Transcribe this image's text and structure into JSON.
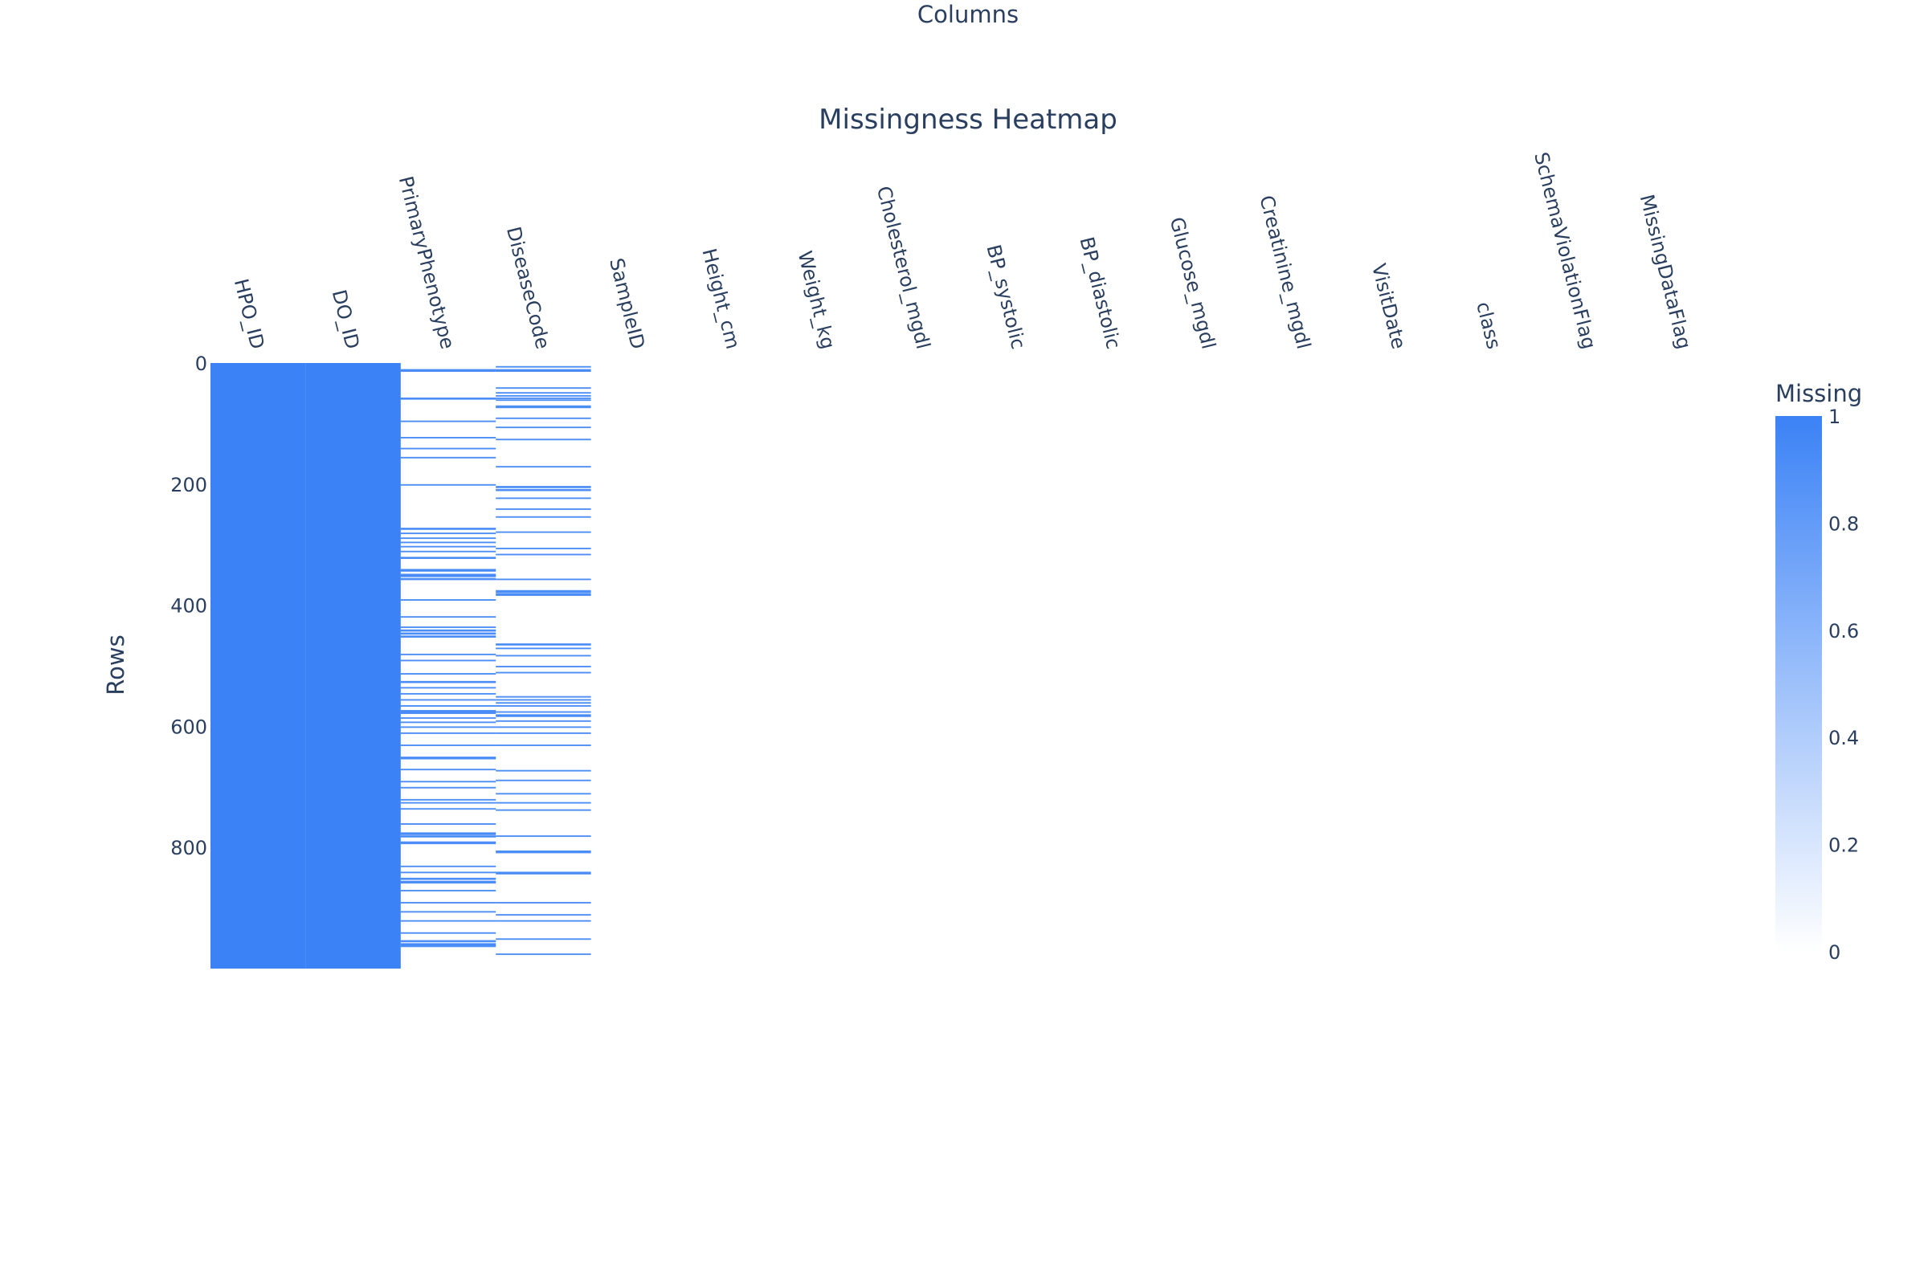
{
  "chart_data": {
    "type": "heatmap",
    "title": "Missingness Heatmap",
    "xlabel": "Columns",
    "ylabel": "Rows",
    "x_axis_side": "top",
    "columns": [
      "HPO_ID",
      "DO_ID",
      "PrimaryPhenotype",
      "DiseaseCode",
      "SampleID",
      "Height_cm",
      "Weight_kg",
      "Cholesterol_mgdl",
      "BP_systolic",
      "BP_diastolic",
      "Glucose_mgdl",
      "Creatinine_mgdl",
      "VisitDate",
      "class",
      "SchemaViolationFlag",
      "MissingDataFlag"
    ],
    "row_count": 1000,
    "y_ticks": [
      0,
      200,
      400,
      600,
      800
    ],
    "colorbar": {
      "title": "Missing",
      "ticks": [
        0,
        0.2,
        0.4,
        0.6,
        0.8,
        1
      ],
      "range": [
        0,
        1
      ],
      "colors": [
        "#ffffff",
        "#3b82f6"
      ],
      "legend_position": "right"
    },
    "missing_rows_by_column": {
      "HPO_ID": "all",
      "DO_ID": "all",
      "PrimaryPhenotype": [
        10,
        11,
        12,
        13,
        57,
        58,
        59,
        95,
        96,
        122,
        123,
        140,
        141,
        155,
        156,
        200,
        201,
        272,
        273,
        274,
        280,
        281,
        288,
        289,
        295,
        296,
        302,
        303,
        310,
        311,
        320,
        321,
        322,
        340,
        341,
        342,
        343,
        348,
        349,
        350,
        351,
        352,
        355,
        356,
        357,
        390,
        391,
        418,
        419,
        435,
        436,
        440,
        441,
        442,
        445,
        446,
        447,
        450,
        451,
        452,
        480,
        481,
        490,
        491,
        512,
        513,
        525,
        526,
        527,
        535,
        536,
        545,
        546,
        555,
        556,
        565,
        566,
        573,
        574,
        575,
        576,
        577,
        578,
        585,
        586,
        592,
        593,
        600,
        601,
        610,
        611,
        630,
        631,
        650,
        651,
        652,
        653,
        670,
        671,
        690,
        691,
        700,
        701,
        720,
        721,
        725,
        726,
        735,
        736,
        760,
        761,
        775,
        776,
        777,
        778,
        780,
        781,
        782,
        790,
        791,
        792,
        793,
        830,
        831,
        840,
        841,
        850,
        851,
        852,
        855,
        856,
        857,
        858,
        870,
        871,
        890,
        891,
        905,
        906,
        920,
        921,
        940,
        941,
        953,
        954,
        955,
        958,
        959,
        960,
        961,
        962,
        963
      ],
      "DiseaseCode": [
        5,
        6,
        10,
        11,
        12,
        13,
        40,
        41,
        48,
        49,
        53,
        54,
        57,
        58,
        60,
        61,
        70,
        71,
        72,
        73,
        90,
        91,
        105,
        106,
        125,
        126,
        170,
        171,
        203,
        204,
        205,
        208,
        209,
        210,
        222,
        223,
        240,
        241,
        253,
        254,
        278,
        279,
        305,
        306,
        315,
        316,
        356,
        357,
        375,
        376,
        377,
        378,
        380,
        381,
        382,
        383,
        463,
        464,
        465,
        470,
        471,
        482,
        483,
        500,
        501,
        510,
        511,
        550,
        551,
        555,
        556,
        560,
        561,
        565,
        566,
        575,
        576,
        580,
        581,
        582,
        583,
        590,
        591,
        600,
        601,
        610,
        611,
        630,
        631,
        672,
        673,
        688,
        689,
        710,
        711,
        725,
        726,
        737,
        738,
        780,
        781,
        805,
        806,
        807,
        808,
        840,
        841,
        842,
        843,
        890,
        891,
        910,
        911,
        920,
        921,
        950,
        951,
        975,
        976
      ]
    }
  }
}
